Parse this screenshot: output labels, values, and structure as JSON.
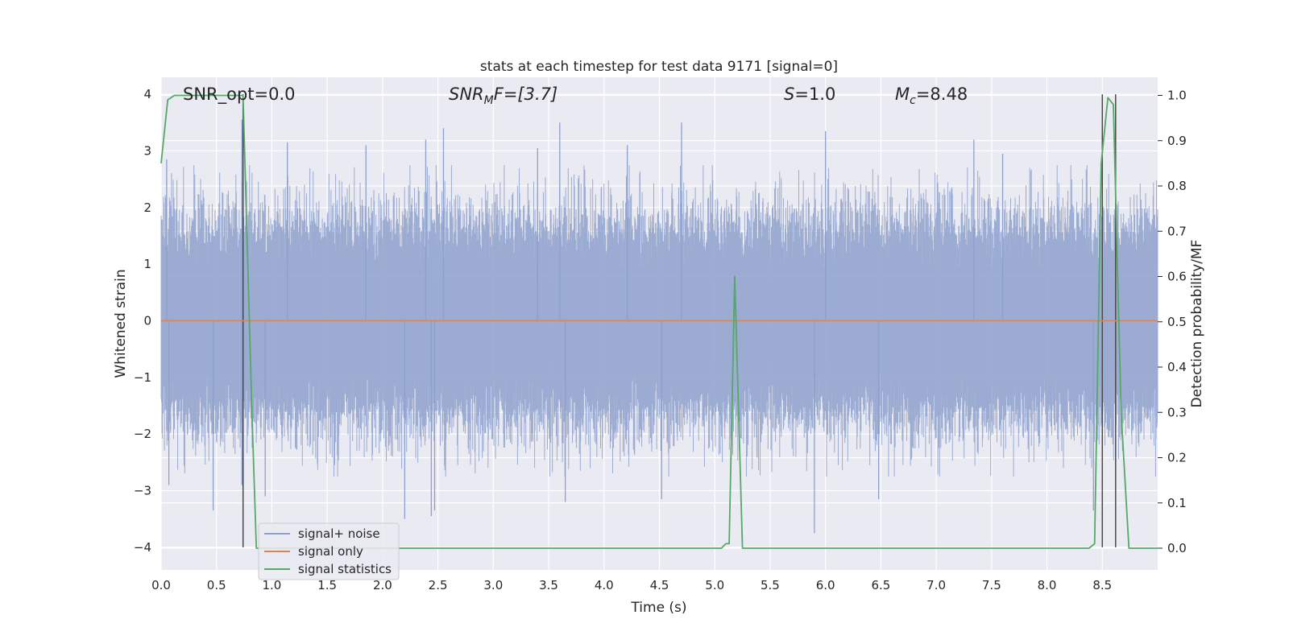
{
  "chart_data": {
    "type": "line",
    "title": "stats at each timestep for test data 9171 [signal=0]",
    "xlabel": "Time (s)",
    "ylabel_left": "Whitened strain",
    "ylabel_right": "Detection probability/MF",
    "xlim": [
      0.0,
      9.0
    ],
    "ylim_left": [
      -4.4,
      4.3
    ],
    "ylim_right": [
      -0.048,
      1.04
    ],
    "x_ticks": [
      "0.0",
      "0.5",
      "1.0",
      "1.5",
      "2.0",
      "2.5",
      "3.0",
      "3.5",
      "4.0",
      "4.5",
      "5.0",
      "5.5",
      "6.0",
      "6.5",
      "7.0",
      "7.5",
      "8.0",
      "8.5"
    ],
    "y_ticks_left": [
      "4",
      "3",
      "2",
      "1",
      "0",
      "−1",
      "−2",
      "−3",
      "−4"
    ],
    "y_ticks_right": [
      "1.0",
      "0.9",
      "0.8",
      "0.7",
      "0.6",
      "0.5",
      "0.4",
      "0.3",
      "0.2",
      "0.1",
      "0.0"
    ],
    "grid": true,
    "legend_placement": "lower-left",
    "annotations": {
      "snr_opt": "SNR_opt=0.0",
      "snr_mf_prefix": "SNR",
      "snr_mf_sub": "M",
      "snr_mf_suffix": "F=[3.7]",
      "s_prefix": "S",
      "s_suffix": "=1.0",
      "mc_prefix": "M",
      "mc_sub": "c",
      "mc_suffix": "=8.48"
    },
    "series": [
      {
        "name": "signal+ noise",
        "color": "#8da0cb",
        "kind": "noise",
        "axis": "left",
        "typical_amplitude": 1.7,
        "peak_samples": [
          {
            "x": 0.05,
            "y": 2.85
          },
          {
            "x": 0.07,
            "y": -2.9
          },
          {
            "x": 0.47,
            "y": -3.35
          },
          {
            "x": 0.73,
            "y": 3.55
          },
          {
            "x": 0.73,
            "y": -2.9
          },
          {
            "x": 0.94,
            "y": -3.1
          },
          {
            "x": 1.14,
            "y": 3.15
          },
          {
            "x": 1.85,
            "y": 3.1
          },
          {
            "x": 2.2,
            "y": -3.5
          },
          {
            "x": 2.39,
            "y": 3.2
          },
          {
            "x": 2.44,
            "y": -3.45
          },
          {
            "x": 2.47,
            "y": -3.35
          },
          {
            "x": 2.55,
            "y": 3.4
          },
          {
            "x": 3.4,
            "y": 3.05
          },
          {
            "x": 3.6,
            "y": 3.5
          },
          {
            "x": 3.65,
            "y": -3.2
          },
          {
            "x": 4.21,
            "y": 3.1
          },
          {
            "x": 4.52,
            "y": -3.15
          },
          {
            "x": 4.7,
            "y": 3.5
          },
          {
            "x": 5.9,
            "y": -3.75
          },
          {
            "x": 6.0,
            "y": 3.35
          },
          {
            "x": 6.48,
            "y": -3.15
          },
          {
            "x": 7.34,
            "y": 3.2
          },
          {
            "x": 7.6,
            "y": 2.95
          },
          {
            "x": 8.42,
            "y": -3.35
          }
        ]
      },
      {
        "name": "signal only",
        "color": "#dd8452",
        "axis": "left",
        "x": [
          0.0,
          9.0
        ],
        "y": [
          0.0,
          0.0
        ]
      },
      {
        "name": "signal statistics",
        "color": "#55a868",
        "axis": "right",
        "x": [
          0.0,
          0.06,
          0.12,
          0.7,
          0.74,
          0.82,
          0.86,
          5.06,
          5.1,
          5.13,
          5.18,
          5.25,
          8.38,
          8.43,
          8.49,
          8.55,
          8.6,
          8.67,
          8.74,
          9.0
        ],
        "y": [
          0.85,
          0.99,
          1.0,
          1.0,
          1.0,
          0.3,
          0.0,
          0.0,
          0.01,
          0.01,
          0.6,
          0.0,
          0.0,
          0.01,
          0.85,
          0.995,
          0.98,
          0.3,
          0.0,
          0.0
        ]
      }
    ],
    "vertical_lines": [
      {
        "x": 0.74,
        "y_from": -4.0,
        "y_to": 4.0,
        "color": "#4a4a4a"
      },
      {
        "x": 8.5,
        "y_from": -4.0,
        "y_to": 4.0,
        "color": "#4a4a4a"
      },
      {
        "x": 8.62,
        "y_from": -4.0,
        "y_to": 4.0,
        "color": "#4a4a4a"
      }
    ],
    "colors": {
      "plot_background": "#eaeaf2",
      "grid": "#ffffff",
      "text": "#262626"
    }
  }
}
